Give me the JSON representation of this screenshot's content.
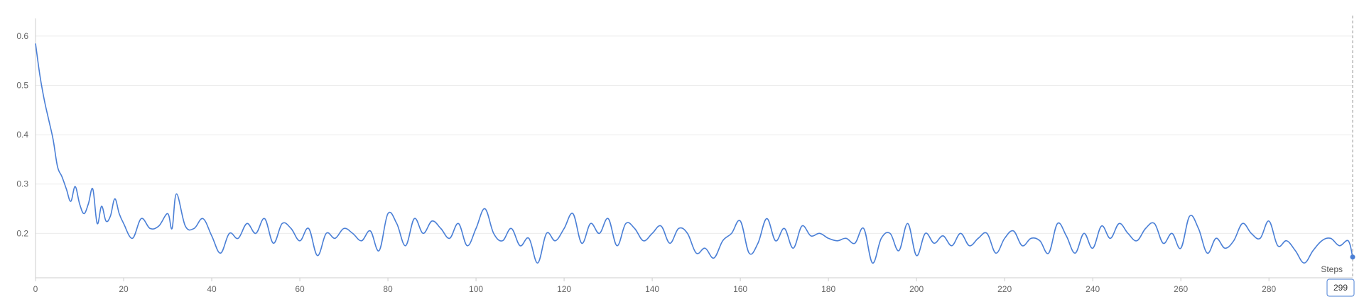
{
  "chart_data": {
    "type": "line",
    "xlabel": "Steps",
    "ylabel": "",
    "xlim": [
      0,
      299
    ],
    "ylim": [
      0.11,
      0.63
    ],
    "x_ticks": [
      0,
      20,
      40,
      60,
      80,
      100,
      120,
      140,
      160,
      180,
      200,
      220,
      240,
      260,
      280
    ],
    "y_ticks": [
      0.2,
      0.3,
      0.4,
      0.5,
      0.6
    ],
    "grid": true,
    "line_color": "#4a7fd6",
    "cursor": {
      "step": 299,
      "label": "299",
      "value": 0.152
    },
    "series": [
      {
        "x": [
          0,
          1,
          2,
          3,
          4,
          5,
          6,
          7,
          8,
          9,
          10,
          11,
          12,
          13,
          14,
          15,
          16,
          17,
          18,
          19,
          20,
          22,
          24,
          26,
          28,
          30,
          31,
          32,
          34,
          36,
          38,
          40,
          42,
          44,
          46,
          48,
          50,
          52,
          54,
          56,
          58,
          60,
          62,
          64,
          66,
          68,
          70,
          72,
          74,
          76,
          78,
          80,
          82,
          84,
          86,
          88,
          90,
          92,
          94,
          96,
          98,
          100,
          102,
          104,
          106,
          108,
          110,
          112,
          114,
          116,
          118,
          120,
          122,
          124,
          126,
          128,
          130,
          132,
          134,
          136,
          138,
          140,
          142,
          144,
          146,
          148,
          150,
          152,
          154,
          156,
          158,
          160,
          162,
          164,
          166,
          168,
          170,
          172,
          174,
          176,
          178,
          180,
          182,
          184,
          186,
          188,
          190,
          192,
          194,
          196,
          198,
          200,
          202,
          204,
          206,
          208,
          210,
          212,
          214,
          216,
          218,
          220,
          222,
          224,
          226,
          228,
          230,
          232,
          234,
          236,
          238,
          240,
          242,
          244,
          246,
          248,
          250,
          252,
          254,
          256,
          258,
          260,
          262,
          264,
          266,
          268,
          270,
          272,
          274,
          276,
          278,
          280,
          282,
          284,
          286,
          288,
          290,
          292,
          294,
          296,
          298,
          299
        ],
        "y": [
          0.585,
          0.52,
          0.47,
          0.43,
          0.39,
          0.335,
          0.315,
          0.29,
          0.265,
          0.295,
          0.26,
          0.24,
          0.26,
          0.29,
          0.22,
          0.255,
          0.225,
          0.235,
          0.27,
          0.24,
          0.22,
          0.19,
          0.23,
          0.21,
          0.215,
          0.24,
          0.21,
          0.28,
          0.215,
          0.21,
          0.23,
          0.195,
          0.16,
          0.2,
          0.19,
          0.22,
          0.2,
          0.23,
          0.18,
          0.22,
          0.21,
          0.185,
          0.21,
          0.155,
          0.2,
          0.19,
          0.21,
          0.2,
          0.185,
          0.205,
          0.165,
          0.24,
          0.22,
          0.175,
          0.23,
          0.2,
          0.225,
          0.21,
          0.19,
          0.22,
          0.175,
          0.21,
          0.25,
          0.2,
          0.185,
          0.21,
          0.175,
          0.19,
          0.14,
          0.2,
          0.185,
          0.21,
          0.24,
          0.18,
          0.22,
          0.2,
          0.23,
          0.175,
          0.22,
          0.21,
          0.185,
          0.2,
          0.215,
          0.18,
          0.21,
          0.2,
          0.16,
          0.17,
          0.15,
          0.185,
          0.2,
          0.225,
          0.16,
          0.18,
          0.23,
          0.185,
          0.21,
          0.17,
          0.215,
          0.195,
          0.2,
          0.19,
          0.185,
          0.19,
          0.18,
          0.21,
          0.14,
          0.19,
          0.2,
          0.165,
          0.22,
          0.155,
          0.2,
          0.18,
          0.195,
          0.175,
          0.2,
          0.175,
          0.19,
          0.2,
          0.16,
          0.19,
          0.205,
          0.175,
          0.19,
          0.185,
          0.16,
          0.22,
          0.195,
          0.16,
          0.2,
          0.17,
          0.215,
          0.19,
          0.22,
          0.2,
          0.185,
          0.21,
          0.22,
          0.18,
          0.2,
          0.17,
          0.235,
          0.21,
          0.16,
          0.19,
          0.17,
          0.185,
          0.22,
          0.2,
          0.19,
          0.225,
          0.175,
          0.185,
          0.165,
          0.14,
          0.165,
          0.185,
          0.19,
          0.175,
          0.185,
          0.152
        ]
      }
    ]
  }
}
